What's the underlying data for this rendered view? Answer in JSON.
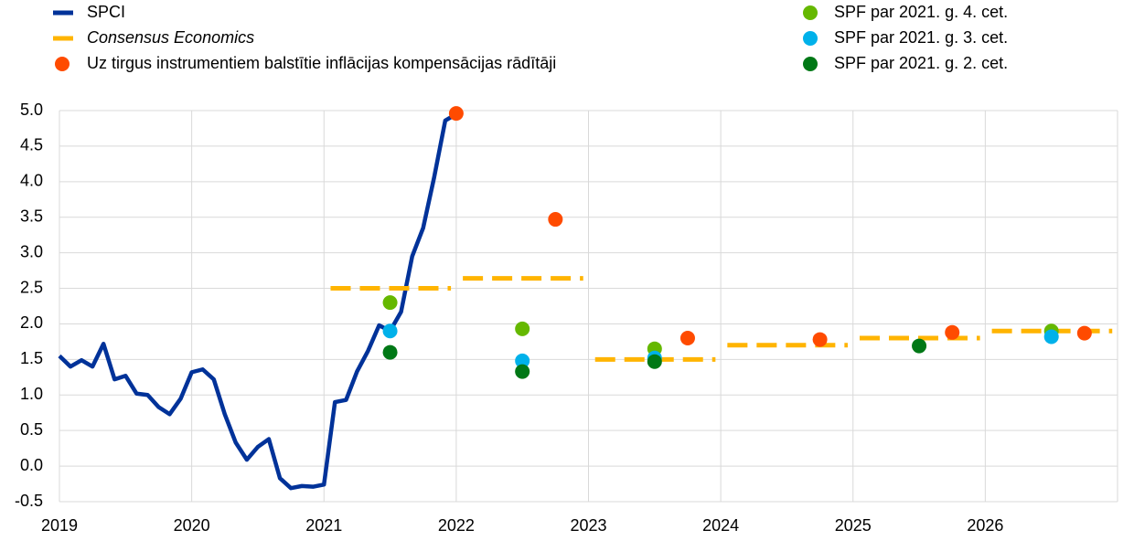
{
  "chart_data": {
    "type": "line",
    "xlim": [
      2019,
      2027
    ],
    "xticks": [
      2019,
      2020,
      2021,
      2022,
      2023,
      2024,
      2025,
      2026
    ],
    "ylim": [
      -0.5,
      5.0
    ],
    "yticks": [
      -0.5,
      {
        "value": 0,
        "label": "0.0"
      },
      0.5,
      {
        "value": 1,
        "label": "1.0"
      },
      1.5,
      {
        "value": 2,
        "label": "2.0"
      },
      2.5,
      {
        "value": 3,
        "label": "3.0"
      },
      3.5,
      {
        "value": 4,
        "label": "4.0"
      },
      4.5,
      {
        "value": 5,
        "label": "5.0"
      }
    ],
    "grid": true,
    "series": [
      {
        "name": "SPCI",
        "type": "line",
        "color": "#003299",
        "x": [
          2019,
          2019.083,
          2019.167,
          2019.25,
          2019.333,
          2019.417,
          2019.5,
          2019.583,
          2019.667,
          2019.75,
          2019.833,
          2019.917,
          2020,
          2020.083,
          2020.167,
          2020.25,
          2020.333,
          2020.417,
          2020.5,
          2020.583,
          2020.667,
          2020.75,
          2020.833,
          2020.917,
          2021,
          2021.083,
          2021.167,
          2021.25,
          2021.333,
          2021.417,
          2021.5,
          2021.583,
          2021.667,
          2021.75,
          2021.833,
          2021.917,
          2022
        ],
        "values": [
          1.55,
          1.4,
          1.49,
          1.4,
          1.72,
          1.22,
          1.27,
          1.02,
          1.0,
          0.83,
          0.73,
          0.95,
          1.32,
          1.36,
          1.22,
          0.73,
          0.33,
          0.09,
          0.27,
          0.38,
          -0.17,
          -0.31,
          -0.28,
          -0.29,
          -0.26,
          0.9,
          0.93,
          1.33,
          1.62,
          1.98,
          1.9,
          2.17,
          2.95,
          3.35,
          4.06,
          4.86,
          4.95
        ]
      },
      {
        "name": "Consensus Economics",
        "type": "step",
        "color": "#ffb400",
        "x": [
          2021,
          2022,
          2023,
          2024,
          2025,
          2026
        ],
        "values": [
          2.5,
          2.64,
          1.5,
          1.7,
          1.8,
          1.9
        ]
      },
      {
        "name": "Uz tirgus instrumentiem balstītie inflācijas kompensācijas rādītāji",
        "type": "scatter",
        "color": "#ff4b00",
        "x": [
          2022,
          2022.75,
          2023.75,
          2024.75,
          2025.75,
          2026.75
        ],
        "values": [
          4.96,
          3.47,
          1.8,
          1.78,
          1.88,
          1.87
        ]
      },
      {
        "name": "SPF par 2021. g. 4. cet.",
        "type": "scatter",
        "color": "#65b800",
        "x": [
          2021.5,
          2022.5,
          2023.5,
          2026.5
        ],
        "values": [
          2.3,
          1.93,
          1.65,
          1.9
        ]
      },
      {
        "name": "SPF par 2021. g. 3. cet.",
        "type": "scatter",
        "color": "#00b1ea",
        "x": [
          2021.5,
          2022.5,
          2023.5,
          2026.5
        ],
        "values": [
          1.9,
          1.48,
          1.52,
          1.82
        ]
      },
      {
        "name": "SPF par 2021. g. 2. cet.",
        "type": "scatter",
        "color": "#007816",
        "x": [
          2021.5,
          2022.5,
          2023.5,
          2025.5
        ],
        "values": [
          1.6,
          1.33,
          1.47,
          1.69
        ]
      }
    ]
  }
}
